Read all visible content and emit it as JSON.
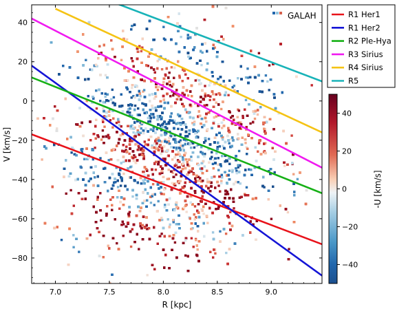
{
  "chart_data": {
    "type": "scatter",
    "xlabel": "R [kpc]",
    "ylabel": "V [km/s]",
    "xlim": [
      6.78,
      9.47
    ],
    "ylim": [
      -93,
      49
    ],
    "xticks": [
      7.0,
      7.5,
      8.0,
      8.5,
      9.0
    ],
    "xtick_labels": [
      "7.0",
      "7.5",
      "8.0",
      "8.5",
      "9.0"
    ],
    "yticks": [
      40,
      20,
      0,
      -20,
      -40,
      -60,
      -80
    ],
    "ytick_labels": [
      "40",
      "20",
      "0",
      "−20",
      "−40",
      "−60",
      "−80"
    ],
    "scatter_series": {
      "name": "GALAH",
      "marker": "square",
      "color_by": "-U [km/s]",
      "notes_visible": "dense point cloud with alternating red/blue diagonal ridges"
    },
    "lines": [
      {
        "name": "R1 Her1",
        "color": "#e8121a",
        "x": [
          6.78,
          9.47
        ],
        "y": [
          -17,
          -73
        ]
      },
      {
        "name": "R1 Her2",
        "color": "#1414d6",
        "x": [
          6.78,
          9.47
        ],
        "y": [
          18,
          -89
        ]
      },
      {
        "name": "R2 Ple-Hya",
        "color": "#16b016",
        "x": [
          6.78,
          9.47
        ],
        "y": [
          12,
          -47
        ]
      },
      {
        "name": "R3 Sirius",
        "color": "#f01af0",
        "x": [
          6.78,
          9.47
        ],
        "y": [
          42,
          -34
        ]
      },
      {
        "name": "R4 Sirius",
        "color": "#f5c314",
        "x": [
          7.0,
          9.47
        ],
        "y": [
          47,
          -16
        ]
      },
      {
        "name": "R5",
        "color": "#18b3b8",
        "x": [
          7.55,
          9.47
        ],
        "y": [
          50,
          10
        ]
      }
    ],
    "colorbar": {
      "label": "-U [km/s]",
      "range": [
        -50,
        50
      ],
      "ticks": [
        40,
        20,
        0,
        -20,
        -40
      ],
      "tick_labels": [
        "40",
        "20",
        "0",
        "−20",
        "−40"
      ],
      "colormap": "RdBu_r"
    },
    "legend_placement": "outside-right"
  }
}
